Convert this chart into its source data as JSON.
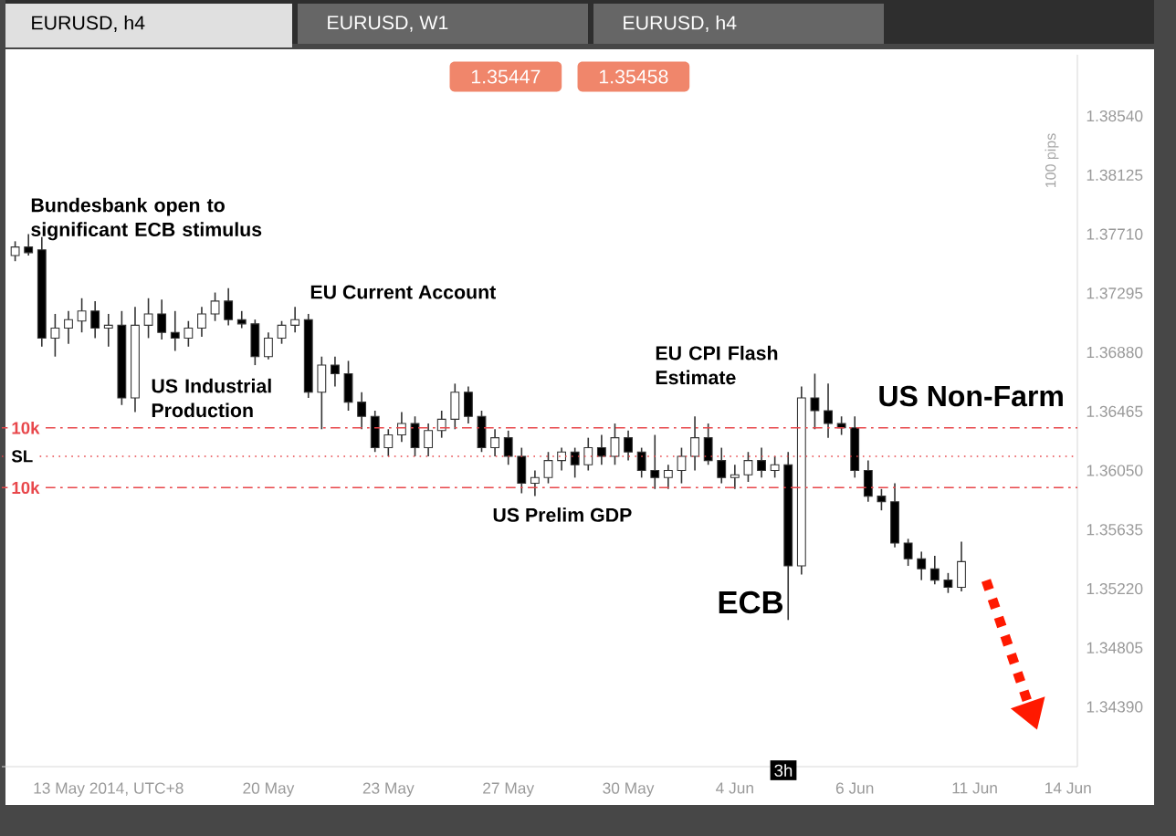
{
  "chart_data": {
    "type": "candlestick",
    "title": "EURUSD, h4",
    "categories": [
      null,
      null,
      null,
      null,
      null,
      null,
      null,
      "13 May 2014, UTC+8",
      null,
      null,
      null,
      null,
      null,
      null,
      null,
      null,
      null,
      null,
      null,
      "20 May",
      null,
      null,
      null,
      null,
      null,
      null,
      null,
      null,
      "23 May",
      null,
      null,
      null,
      null,
      null,
      null,
      null,
      null,
      "27 May",
      null,
      null,
      null,
      null,
      null,
      null,
      null,
      null,
      "30 May",
      null,
      null,
      null,
      null,
      null,
      null,
      null,
      "4 Jun",
      null,
      null,
      null,
      null,
      null,
      null,
      null,
      null,
      "6 Jun",
      null,
      null,
      null,
      null,
      null,
      null,
      null,
      null,
      "11 Jun",
      null,
      null,
      null,
      null,
      null,
      null,
      "14 Jun"
    ],
    "ohlc": [
      [
        1.3756,
        1.3766,
        1.3752,
        1.3762
      ],
      [
        1.3762,
        1.3771,
        1.3756,
        1.3758
      ],
      [
        1.376,
        1.3769,
        1.3692,
        1.3698
      ],
      [
        1.3698,
        1.3715,
        1.3685,
        1.3705
      ],
      [
        1.3705,
        1.3717,
        1.3694,
        1.3711
      ],
      [
        1.371,
        1.3726,
        1.3702,
        1.3717
      ],
      [
        1.3717,
        1.3724,
        1.3698,
        1.3705
      ],
      [
        1.3705,
        1.3715,
        1.3692,
        1.3707
      ],
      [
        1.3707,
        1.3717,
        1.3651,
        1.3656
      ],
      [
        1.3656,
        1.372,
        1.3646,
        1.3707
      ],
      [
        1.3707,
        1.3726,
        1.3698,
        1.3715
      ],
      [
        1.3715,
        1.3725,
        1.3697,
        1.3702
      ],
      [
        1.3702,
        1.3717,
        1.3689,
        1.3698
      ],
      [
        1.3698,
        1.371,
        1.3692,
        1.3705
      ],
      [
        1.3705,
        1.372,
        1.3699,
        1.3715
      ],
      [
        1.3715,
        1.373,
        1.371,
        1.3724
      ],
      [
        1.3724,
        1.3733,
        1.3707,
        1.3711
      ],
      [
        1.3711,
        1.3717,
        1.3705,
        1.3708
      ],
      [
        1.3708,
        1.3711,
        1.3679,
        1.3685
      ],
      [
        1.3685,
        1.3702,
        1.3683,
        1.3698
      ],
      [
        1.3698,
        1.371,
        1.3694,
        1.3707
      ],
      [
        1.3707,
        1.372,
        1.3702,
        1.3711
      ],
      [
        1.3711,
        1.3715,
        1.3656,
        1.366
      ],
      [
        1.366,
        1.3685,
        1.3634,
        1.3679
      ],
      [
        1.3679,
        1.3685,
        1.3664,
        1.3673
      ],
      [
        1.3673,
        1.3682,
        1.3647,
        1.3653
      ],
      [
        1.3653,
        1.366,
        1.3634,
        1.3643
      ],
      [
        1.3643,
        1.3647,
        1.3618,
        1.3621
      ],
      [
        1.3621,
        1.3634,
        1.3615,
        1.363
      ],
      [
        1.363,
        1.3646,
        1.3625,
        1.3638
      ],
      [
        1.3638,
        1.3643,
        1.3615,
        1.3621
      ],
      [
        1.3621,
        1.3638,
        1.3615,
        1.3633
      ],
      [
        1.3633,
        1.3647,
        1.3628,
        1.3641
      ],
      [
        1.3641,
        1.3666,
        1.3634,
        1.366
      ],
      [
        1.366,
        1.3664,
        1.3638,
        1.3643
      ],
      [
        1.3643,
        1.3647,
        1.3618,
        1.3621
      ],
      [
        1.3621,
        1.3634,
        1.3615,
        1.3628
      ],
      [
        1.3628,
        1.3633,
        1.3609,
        1.3615
      ],
      [
        1.3615,
        1.3621,
        1.3589,
        1.3596
      ],
      [
        1.3596,
        1.3605,
        1.3587,
        1.36
      ],
      [
        1.36,
        1.3618,
        1.3596,
        1.3612
      ],
      [
        1.3612,
        1.3621,
        1.3605,
        1.3618
      ],
      [
        1.3618,
        1.3621,
        1.36,
        1.3609
      ],
      [
        1.3609,
        1.3628,
        1.3605,
        1.3621
      ],
      [
        1.3621,
        1.363,
        1.3609,
        1.3615
      ],
      [
        1.3615,
        1.3638,
        1.3609,
        1.3628
      ],
      [
        1.3628,
        1.3633,
        1.3612,
        1.3618
      ],
      [
        1.3618,
        1.3621,
        1.36,
        1.3605
      ],
      [
        1.3605,
        1.363,
        1.3592,
        1.36
      ],
      [
        1.36,
        1.3609,
        1.3592,
        1.3605
      ],
      [
        1.3605,
        1.3621,
        1.3596,
        1.3615
      ],
      [
        1.3615,
        1.3643,
        1.3605,
        1.3628
      ],
      [
        1.3628,
        1.3638,
        1.3609,
        1.3612
      ],
      [
        1.3612,
        1.3621,
        1.3596,
        1.36
      ],
      [
        1.36,
        1.3609,
        1.3592,
        1.3602
      ],
      [
        1.3602,
        1.3618,
        1.3597,
        1.3612
      ],
      [
        1.3612,
        1.3621,
        1.36,
        1.3605
      ],
      [
        1.3605,
        1.3615,
        1.36,
        1.3609
      ],
      [
        1.3609,
        1.3618,
        1.35,
        1.3538
      ],
      [
        1.3538,
        1.3664,
        1.3532,
        1.3656
      ],
      [
        1.3656,
        1.3673,
        1.3634,
        1.3647
      ],
      [
        1.3647,
        1.3666,
        1.3628,
        1.3638
      ],
      [
        1.3638,
        1.3643,
        1.363,
        1.3635
      ],
      [
        1.3635,
        1.3643,
        1.36,
        1.3605
      ],
      [
        1.3605,
        1.3612,
        1.3583,
        1.3587
      ],
      [
        1.3587,
        1.3592,
        1.3577,
        1.3583
      ],
      [
        1.3583,
        1.3596,
        1.3551,
        1.3554
      ],
      [
        1.3554,
        1.3557,
        1.3538,
        1.3543
      ],
      [
        1.3543,
        1.3548,
        1.3528,
        1.3536
      ],
      [
        1.3536,
        1.3545,
        1.3525,
        1.3528
      ],
      [
        1.3528,
        1.3533,
        1.3519,
        1.3523
      ],
      [
        1.3523,
        1.3555,
        1.352,
        1.3541
      ],
      null,
      null,
      null,
      null,
      null,
      null,
      null,
      null
    ],
    "ylim": [
      1.3397,
      1.3897
    ],
    "yticks": [
      {
        "value": 1.3854,
        "label": "1.38540"
      },
      {
        "value": 1.38125,
        "label": "1.38125"
      },
      {
        "value": 1.3771,
        "label": "1.37710"
      },
      {
        "value": 1.37295,
        "label": "1.37295"
      },
      {
        "value": 1.3688,
        "label": "1.36880"
      },
      {
        "value": 1.36465,
        "label": "1.36465"
      },
      {
        "value": 1.3605,
        "label": "1.36050"
      },
      {
        "value": 1.35635,
        "label": "1.35635"
      },
      {
        "value": 1.3522,
        "label": "1.35220"
      },
      {
        "value": 1.34805,
        "label": "1.34805"
      },
      {
        "value": 1.3439,
        "label": "1.34390"
      }
    ],
    "ref_lines": [
      {
        "axis": "y",
        "value": 1.3635,
        "label": "10k",
        "color": "#e8474b",
        "line_style": "dashed"
      },
      {
        "axis": "y",
        "value": 1.3615,
        "label": "SL",
        "color": "#e8474b",
        "line_style": "dotted"
      },
      {
        "axis": "y",
        "value": 1.3593,
        "label": "10k",
        "color": "#e8474b",
        "line_style": "dashed"
      }
    ],
    "annotations": [
      "Bundesbank open to significant ECB stimulus",
      "US Industrial Production",
      "EU Current Account",
      "US Prelim GDP",
      "EU CPI Flash Estimate",
      "ECB",
      "US Non-Farm",
      "EURUSD, W1",
      "EURUSD, h4",
      "1.35447",
      "1.35458",
      "100 pips",
      "3h"
    ]
  }
}
